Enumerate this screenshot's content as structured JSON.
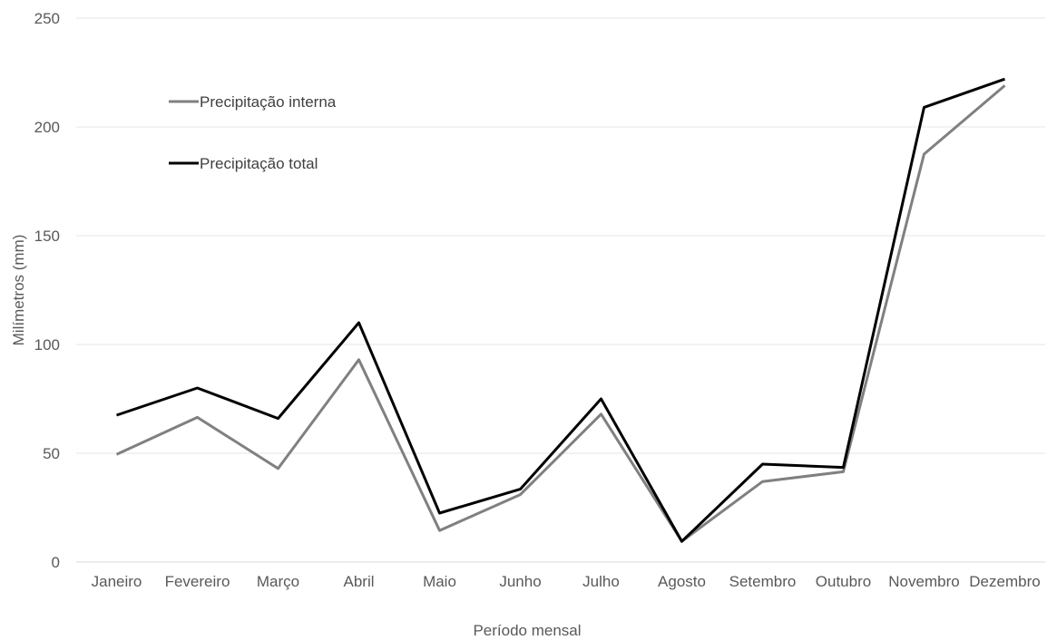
{
  "chart_data": {
    "type": "line",
    "categories": [
      "Janeiro",
      "Fevereiro",
      "Março",
      "Abril",
      "Maio",
      "Junho",
      "Julho",
      "Agosto",
      "Setembro",
      "Outubro",
      "Novembro",
      "Dezembro"
    ],
    "series": [
      {
        "name": "Precipitação interna",
        "color": "#808080",
        "values": [
          49.5,
          66.5,
          43,
          93,
          14.5,
          31,
          68,
          9.5,
          37,
          41.5,
          187.5,
          219
        ]
      },
      {
        "name": "Precipitação total",
        "color": "#000000",
        "values": [
          67.5,
          80,
          66,
          110,
          22.5,
          33.5,
          75,
          9.5,
          45,
          43.5,
          209,
          222
        ]
      }
    ],
    "title": "",
    "xlabel": "Período mensal",
    "ylabel": "Milímetros (mm)",
    "ylim": [
      0,
      250
    ],
    "yticks": [
      0,
      50,
      100,
      150,
      200,
      250
    ],
    "grid": true,
    "legend_position": "top-left"
  }
}
